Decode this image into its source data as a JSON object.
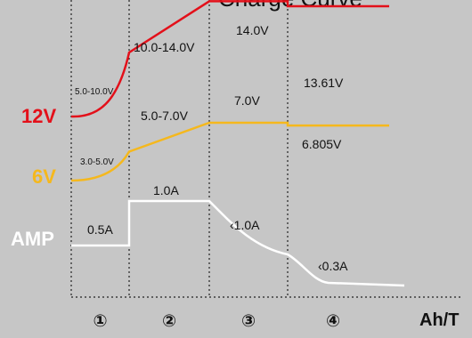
{
  "chart_data": {
    "type": "line",
    "title": "",
    "xlabel": "Ah/T",
    "ylabel": "",
    "stages": [
      "①",
      "②",
      "③",
      "④"
    ],
    "series": [
      {
        "name": "12V",
        "color": "#e3101a",
        "points": [
          {
            "stage": 1,
            "pos": 0.0,
            "value": 5.0
          },
          {
            "stage": 1,
            "pos": 0.5,
            "value": 6.0
          },
          {
            "stage": 1,
            "pos": 1.0,
            "value": 10.0
          },
          {
            "stage": 2,
            "pos": 1.0,
            "value": 14.0
          },
          {
            "stage": 3,
            "pos": 1.0,
            "value": 14.0
          },
          {
            "stage": 4,
            "pos": 0.0,
            "value": 13.61
          },
          {
            "stage": 4,
            "pos": 1.0,
            "value": 13.61
          }
        ],
        "stage_labels": [
          "5.0-10.0V",
          "10.0-14.0V",
          "14.0V",
          "13.61V"
        ]
      },
      {
        "name": "6V",
        "color": "#f5b81d",
        "points": [
          {
            "stage": 1,
            "pos": 0.0,
            "value": 3.0
          },
          {
            "stage": 1,
            "pos": 1.0,
            "value": 5.0
          },
          {
            "stage": 2,
            "pos": 1.0,
            "value": 7.0
          },
          {
            "stage": 3,
            "pos": 1.0,
            "value": 7.0
          },
          {
            "stage": 4,
            "pos": 0.0,
            "value": 6.805
          },
          {
            "stage": 4,
            "pos": 1.0,
            "value": 6.805
          }
        ],
        "stage_labels": [
          "3.0-5.0V",
          "5.0-7.0V",
          "7.0V",
          "6.805V"
        ]
      },
      {
        "name": "AMP",
        "color": "#ffffff",
        "points": [
          {
            "stage": 1,
            "pos": 0.0,
            "value": 0.5
          },
          {
            "stage": 1,
            "pos": 1.0,
            "value": 0.5
          },
          {
            "stage": 2,
            "pos": 0.0,
            "value": 1.0
          },
          {
            "stage": 2,
            "pos": 1.0,
            "value": 1.0
          },
          {
            "stage": 3,
            "pos": 1.0,
            "value": 0.4
          },
          {
            "stage": 4,
            "pos": 1.0,
            "value": 0.05
          }
        ],
        "stage_labels": [
          "0.5A",
          "1.0A",
          "‹1.0A",
          "‹0.3A"
        ]
      }
    ],
    "top_text": "Charge Curve",
    "background": "#c6c6c6",
    "grid": false
  }
}
